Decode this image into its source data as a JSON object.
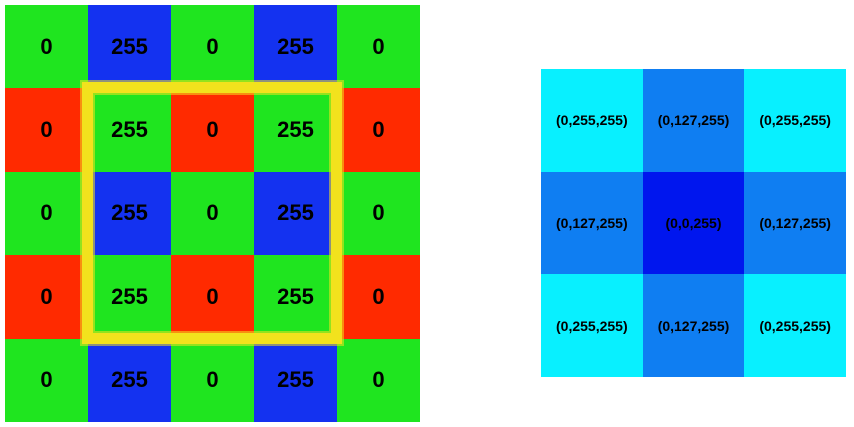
{
  "colors": {
    "red": "#ff2a00",
    "green": "#1fe51f",
    "blue": "#1432f0",
    "highlight": "#f2e21d",
    "cyan": "#08f0ff",
    "mid_blue": "#0f7ef2",
    "dark_blue": "#0016ee"
  },
  "bayer_grid": {
    "rows": [
      [
        {
          "color": "green",
          "value": "0"
        },
        {
          "color": "blue",
          "value": "255"
        },
        {
          "color": "green",
          "value": "0"
        },
        {
          "color": "blue",
          "value": "255"
        },
        {
          "color": "green",
          "value": "0"
        }
      ],
      [
        {
          "color": "red",
          "value": "0"
        },
        {
          "color": "green",
          "value": "255"
        },
        {
          "color": "red",
          "value": "0"
        },
        {
          "color": "green",
          "value": "255"
        },
        {
          "color": "red",
          "value": "0"
        }
      ],
      [
        {
          "color": "green",
          "value": "0"
        },
        {
          "color": "blue",
          "value": "255"
        },
        {
          "color": "green",
          "value": "0"
        },
        {
          "color": "blue",
          "value": "255"
        },
        {
          "color": "green",
          "value": "0"
        }
      ],
      [
        {
          "color": "red",
          "value": "0"
        },
        {
          "color": "green",
          "value": "255"
        },
        {
          "color": "red",
          "value": "0"
        },
        {
          "color": "green",
          "value": "255"
        },
        {
          "color": "red",
          "value": "0"
        }
      ],
      [
        {
          "color": "green",
          "value": "0"
        },
        {
          "color": "blue",
          "value": "255"
        },
        {
          "color": "green",
          "value": "0"
        },
        {
          "color": "blue",
          "value": "255"
        },
        {
          "color": "green",
          "value": "0"
        }
      ]
    ]
  },
  "rgb_grid": {
    "rows": [
      [
        {
          "color": "cyan",
          "value": "(0,255,255)"
        },
        {
          "color": "mid_blue",
          "value": "(0,127,255)"
        },
        {
          "color": "cyan",
          "value": "(0,255,255)"
        }
      ],
      [
        {
          "color": "mid_blue",
          "value": "(0,127,255)"
        },
        {
          "color": "dark_blue",
          "value": "(0,0,255)"
        },
        {
          "color": "mid_blue",
          "value": "(0,127,255)"
        }
      ],
      [
        {
          "color": "cyan",
          "value": "(0,255,255)"
        },
        {
          "color": "mid_blue",
          "value": "(0,127,255)"
        },
        {
          "color": "cyan",
          "value": "(0,255,255)"
        }
      ]
    ]
  }
}
